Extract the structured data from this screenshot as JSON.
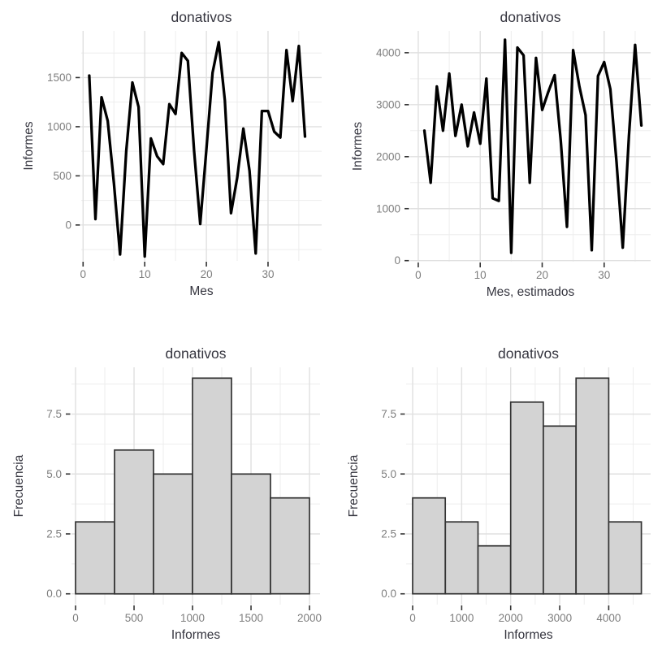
{
  "page": {
    "background": "#ffffff"
  },
  "style": {
    "title_color": "#35353f",
    "axis_label_color": "#35353f",
    "tick_label_color": "#7e7e7e",
    "tick_mark_color": "#333333",
    "grid_major_color": "#e0e0e0",
    "grid_minor_color": "#ededed",
    "line_color": "#000000",
    "bar_fill": "#d3d3d3",
    "bar_stroke": "#333333"
  },
  "chart_data": [
    {
      "id": "line-informes-mes",
      "type": "line",
      "title": "donativos",
      "xlabel": "Mes",
      "ylabel": "Informes",
      "x": [
        1,
        2,
        3,
        4,
        5,
        6,
        7,
        8,
        9,
        10,
        11,
        12,
        13,
        14,
        15,
        16,
        17,
        18,
        19,
        20,
        21,
        22,
        23,
        24,
        25,
        26,
        27,
        28,
        29,
        30,
        31,
        32,
        33,
        34,
        35,
        36
      ],
      "y": [
        1520,
        60,
        1300,
        1060,
        430,
        -300,
        750,
        1450,
        1200,
        -320,
        880,
        700,
        620,
        1230,
        1130,
        1750,
        1670,
        760,
        10,
        770,
        1550,
        1860,
        1270,
        120,
        480,
        980,
        550,
        -290,
        1160,
        1160,
        950,
        890,
        1780,
        1260,
        1820,
        900
      ],
      "xticks": [
        0,
        10,
        20,
        30
      ],
      "xtick_labels": [
        "0",
        "10",
        "20",
        "30"
      ],
      "yticks": [
        0,
        500,
        1000,
        1500
      ],
      "ytick_labels": [
        "0",
        "500",
        "1000",
        "1500"
      ],
      "xlim": [
        -0.3,
        38.7
      ],
      "ylim": [
        -365,
        1975
      ],
      "grid": true,
      "legend": "none"
    },
    {
      "id": "line-informes-mes-estimados",
      "type": "line",
      "title": "donativos",
      "xlabel": "Mes, estimados",
      "ylabel": "Informes",
      "x": [
        1,
        2,
        3,
        4,
        5,
        6,
        7,
        8,
        9,
        10,
        11,
        12,
        13,
        14,
        15,
        16,
        17,
        18,
        19,
        20,
        21,
        22,
        23,
        24,
        25,
        26,
        27,
        28,
        29,
        30,
        31,
        32,
        33,
        34,
        35,
        36
      ],
      "y": [
        2500,
        1500,
        3350,
        2500,
        3600,
        2400,
        3000,
        2200,
        2850,
        2250,
        3500,
        1200,
        1150,
        4250,
        150,
        4100,
        3950,
        1500,
        3900,
        2900,
        3250,
        3570,
        2300,
        650,
        4050,
        3350,
        2800,
        200,
        3550,
        3820,
        3300,
        1900,
        250,
        2400,
        4150,
        2600
      ],
      "xticks": [
        0,
        10,
        20,
        30
      ],
      "xtick_labels": [
        "0",
        "10",
        "20",
        "30"
      ],
      "yticks": [
        0,
        1000,
        2000,
        3000,
        4000
      ],
      "ytick_labels": [
        "0",
        "1000",
        "2000",
        "3000",
        "4000"
      ],
      "xlim": [
        -1.3,
        37.5
      ],
      "ylim": [
        -20,
        4420
      ],
      "grid": true,
      "legend": "none"
    },
    {
      "id": "histogram-informes",
      "type": "histogram",
      "title": "donativos",
      "xlabel": "Informes",
      "ylabel": "Frecuencia",
      "bin_start": 0,
      "bin_width": 333.33,
      "counts": [
        3,
        6,
        5,
        9,
        5,
        4
      ],
      "xticks": [
        0,
        500,
        1000,
        1500,
        2000
      ],
      "xtick_labels": [
        "0",
        "500",
        "1000",
        "1500",
        "2000"
      ],
      "yticks": [
        0,
        2.5,
        5,
        7.5
      ],
      "ytick_labels": [
        "0.0",
        "2.5",
        "5.0",
        "7.5"
      ],
      "xlim": [
        -35,
        2090
      ],
      "ylim": [
        -0.45,
        9.45
      ],
      "grid": true,
      "legend": "none"
    },
    {
      "id": "histogram-informes-estimados",
      "type": "histogram",
      "title": "donativos",
      "xlabel": "Informes",
      "ylabel": "Frecuencia",
      "bin_start": 0,
      "bin_width": 666.67,
      "counts": [
        4,
        3,
        2,
        8,
        7,
        9,
        3
      ],
      "xticks": [
        0,
        1000,
        2000,
        3000,
        4000
      ],
      "xtick_labels": [
        "0",
        "1000",
        "2000",
        "3000",
        "4000"
      ],
      "yticks": [
        0,
        2.5,
        5,
        7.5
      ],
      "ytick_labels": [
        "0.0",
        "2.5",
        "5.0",
        "7.5"
      ],
      "xlim": [
        -133,
        4855
      ],
      "ylim": [
        -0.45,
        9.45
      ],
      "grid": true,
      "legend": "none"
    }
  ]
}
